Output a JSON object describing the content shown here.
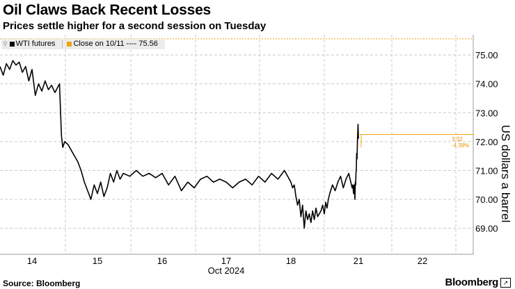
{
  "header": {
    "title": "Oil Claws Back Recent Losses",
    "subtitle": "Prices settle higher for a second session on Tuesday"
  },
  "footer": {
    "source": "Source: Bloomberg",
    "brand": "Bloomberg"
  },
  "colors": {
    "series": "#000000",
    "reference": "#f0a30a",
    "grid": "#c8c8c8"
  },
  "chart_data": {
    "type": "line",
    "title": "Oil Claws Back Recent Losses",
    "subtitle": "Prices settle higher for a second session on Tuesday",
    "xlabel": "Oct 2024",
    "ylabel": "US dollars a barrel",
    "ylim": [
      68.1,
      75.7
    ],
    "y_axis_side": "right",
    "grid": true,
    "legend_position": "top-left",
    "legend": [
      {
        "name": "WTI futures",
        "color": "#000000"
      },
      {
        "name": "Close on 10/11 ---- 75.56",
        "color": "#f0a30a"
      }
    ],
    "x_ticks": [
      "14",
      "15",
      "16",
      "17",
      "18",
      "21",
      "22"
    ],
    "y_ticks": [
      "69.00",
      "70.00",
      "71.00",
      "72.00",
      "73.00",
      "74.00",
      "75.00"
    ],
    "reference_line": {
      "label": "Close on 10/11",
      "value": 75.56
    },
    "annotations": [
      "3.32",
      "-4.39%"
    ],
    "series": [
      {
        "name": "WTI futures",
        "x": [
          13.5,
          13.55,
          13.6,
          13.65,
          13.7,
          13.75,
          13.8,
          13.85,
          13.9,
          13.95,
          14.0,
          14.05,
          14.1,
          14.15,
          14.2,
          14.25,
          14.3,
          14.35,
          14.42,
          14.45,
          14.47,
          14.5,
          14.55,
          14.6,
          14.65,
          14.7,
          14.75,
          14.8,
          14.85,
          14.9,
          14.95,
          15.0,
          15.05,
          15.1,
          15.15,
          15.2,
          15.25,
          15.3,
          15.35,
          15.4,
          15.5,
          15.6,
          15.7,
          15.8,
          15.9,
          16.0,
          16.1,
          16.2,
          16.3,
          16.4,
          16.5,
          16.6,
          16.7,
          16.8,
          16.9,
          17.0,
          17.1,
          17.2,
          17.3,
          17.4,
          17.5,
          17.6,
          17.7,
          17.8,
          17.9,
          18.0,
          18.05,
          18.1,
          18.15,
          18.2,
          18.25,
          18.3,
          18.35,
          18.4,
          18.45,
          18.5,
          18.55,
          18.6,
          18.65,
          18.7,
          18.75,
          18.8,
          18.85,
          18.9,
          18.95,
          19.0,
          19.05,
          19.1,
          19.15,
          19.2,
          19.3,
          19.4,
          19.5,
          19.6,
          19.7,
          19.8,
          19.9,
          20.0,
          20.1,
          20.2,
          20.3,
          20.4,
          20.5,
          20.55,
          20.6,
          20.65,
          20.7,
          20.75,
          20.8,
          20.85,
          20.9,
          20.95,
          21.0
        ],
        "values": [
          74.6,
          74.3,
          74.7,
          74.5,
          74.8,
          74.65,
          74.75,
          74.4,
          74.6,
          74.1,
          74.5,
          73.6,
          74.0,
          73.75,
          74.1,
          73.8,
          73.95,
          73.7,
          74.0,
          72.2,
          71.8,
          72.0,
          71.9,
          71.7,
          71.5,
          71.3,
          71.0,
          70.6,
          70.3,
          70.0,
          70.5,
          70.2,
          70.6,
          70.1,
          70.4,
          70.9,
          70.6,
          71.0,
          70.7,
          70.9,
          70.8,
          71.0,
          70.8,
          70.9,
          70.75,
          70.9,
          70.5,
          70.8,
          70.3,
          70.6,
          70.4,
          70.7,
          70.8,
          70.6,
          70.7,
          70.6,
          70.4,
          70.6,
          70.7,
          70.5,
          70.8,
          70.6,
          70.9,
          70.7,
          71.0,
          70.6,
          70.4,
          70.5,
          70.1,
          69.8,
          70.0,
          69.4,
          69.8,
          69.0,
          69.6,
          69.3,
          69.5,
          69.2,
          69.6,
          69.3,
          69.7,
          69.4,
          69.5,
          69.6,
          69.8,
          69.5,
          69.9,
          69.7,
          70.0,
          70.2,
          70.5,
          70.3,
          70.6,
          70.8,
          70.4,
          70.7,
          70.9,
          70.5,
          70.4,
          70.5,
          70.2,
          70.5,
          70.0,
          70.6,
          70.5,
          70.9,
          71.1,
          71.6,
          71.4,
          71.9,
          72.3,
          72.6,
          72.1
        ]
      }
    ]
  }
}
